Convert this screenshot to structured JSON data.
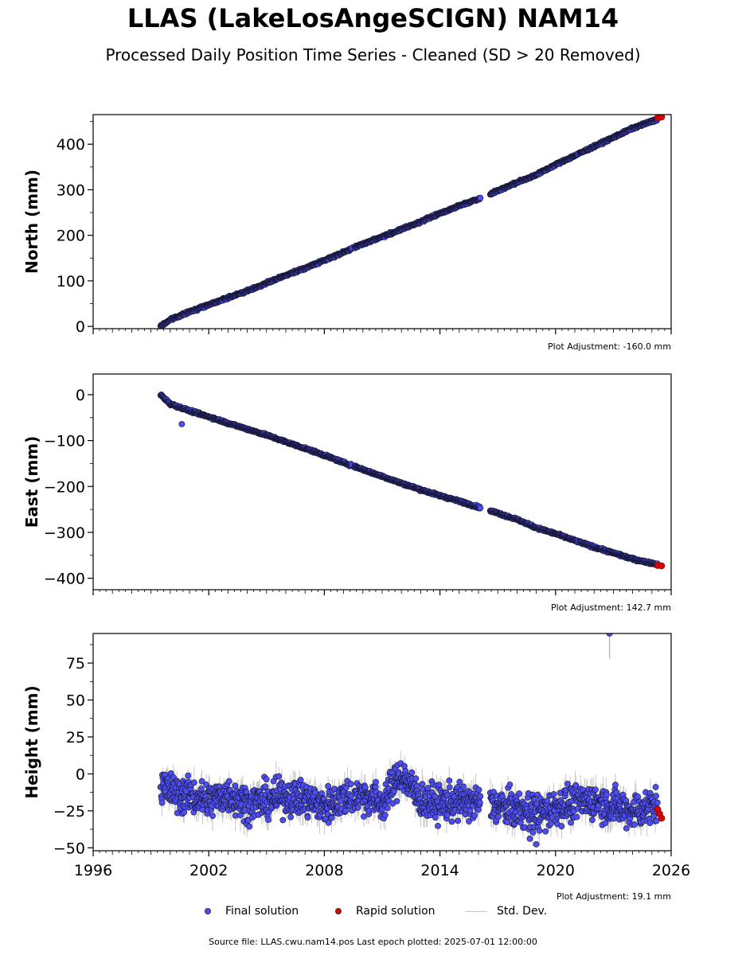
{
  "title": "LLAS (LakeLosAngeSCIGN) NAM14",
  "subtitle": "Processed Daily Position Time Series - Cleaned (SD > 20 Removed)",
  "legend": {
    "final_label": "Final solution",
    "rapid_label": "Rapid solution",
    "std_label": "Std. Dev."
  },
  "footer": {
    "source": "Source file: LLAS.cwu.nam14.pos  Last epoch plotted: 2025-07-01 12:00:00"
  },
  "colors": {
    "final": "#4d4df0",
    "rapid": "#e00000",
    "std": "#b0b0b0",
    "edge": "#15152e"
  },
  "chart_data": [
    {
      "type": "scatter",
      "panel": "north",
      "ylabel": "North (mm)",
      "adjustment": "Plot Adjustment: -160.0 mm",
      "xlim": [
        1996,
        2026
      ],
      "ylim": [
        -5,
        465
      ],
      "yticks": [
        0,
        100,
        200,
        300,
        400
      ],
      "yticklabels": [
        "0",
        "100",
        "200",
        "300",
        "400"
      ],
      "series": [
        {
          "name": "Final solution",
          "x": [
            1999.5,
            2000,
            2001,
            2002,
            2003,
            2004,
            2005,
            2006,
            2007,
            2008,
            2009,
            2010,
            2011,
            2012,
            2013,
            2014,
            2015,
            2016,
            2017,
            2018,
            2019,
            2020,
            2021,
            2022,
            2023,
            2024,
            2025.3
          ],
          "y": [
            0,
            15,
            32,
            48,
            63,
            78,
            95,
            112,
            128,
            145,
            163,
            181,
            197,
            213,
            230,
            248,
            265,
            280,
            298,
            316,
            333,
            355,
            375,
            395,
            415,
            435,
            455
          ]
        },
        {
          "name": "Rapid solution",
          "x": [
            2025.3,
            2025.5
          ],
          "y": [
            458,
            460
          ]
        }
      ]
    },
    {
      "type": "scatter",
      "panel": "east",
      "ylabel": "East (mm)",
      "adjustment": "Plot Adjustment: 142.7 mm",
      "xlim": [
        1996,
        2026
      ],
      "ylim": [
        -425,
        45
      ],
      "yticks": [
        0,
        -100,
        -200,
        -300,
        -400
      ],
      "yticklabels": [
        "0",
        "−100",
        "−200",
        "−300",
        "−400"
      ],
      "series": [
        {
          "name": "Final solution",
          "x": [
            1999.5,
            2000,
            2001,
            2002,
            2003,
            2004,
            2005,
            2006,
            2007,
            2008,
            2009,
            2010,
            2011,
            2012,
            2013,
            2014,
            2015,
            2016,
            2017,
            2018,
            2019,
            2020,
            2021,
            2022,
            2023,
            2024,
            2025.3
          ],
          "y": [
            0,
            -20,
            -35,
            -48,
            -62,
            -75,
            -88,
            -103,
            -117,
            -132,
            -148,
            -163,
            -178,
            -193,
            -207,
            -220,
            -232,
            -245,
            -258,
            -272,
            -290,
            -303,
            -318,
            -332,
            -345,
            -358,
            -370
          ]
        },
        {
          "name": "Rapid solution",
          "x": [
            2025.3,
            2025.5
          ],
          "y": [
            -372,
            -373
          ]
        }
      ]
    },
    {
      "type": "scatter",
      "panel": "height",
      "ylabel": "Height (mm)",
      "adjustment": "Plot Adjustment: 19.1 mm",
      "xlim": [
        1996,
        2026
      ],
      "ylim": [
        -52,
        95
      ],
      "yticks": [
        -50,
        -25,
        0,
        25,
        50,
        75
      ],
      "yticklabels": [
        "−50",
        "−25",
        "0",
        "25",
        "50",
        "75"
      ],
      "xticks": [
        1996,
        2002,
        2008,
        2014,
        2020,
        2026
      ],
      "xticklabels": [
        "1996",
        "2002",
        "2008",
        "2014",
        "2020",
        "2026"
      ],
      "series": [
        {
          "name": "Final solution",
          "x": [
            1999.5,
            2000,
            2001,
            2002,
            2003,
            2004,
            2005,
            2006,
            2007,
            2008,
            2009,
            2010,
            2011,
            2012,
            2013,
            2014,
            2015,
            2016.5,
            2017,
            2018,
            2019,
            2020,
            2021,
            2022,
            2023,
            2024,
            2025.3
          ],
          "y": [
            -8,
            -12,
            -15,
            -18,
            -14,
            -20,
            -18,
            -15,
            -17,
            -22,
            -16,
            -14,
            -20,
            0,
            -18,
            -20,
            -19,
            -20,
            -22,
            -24,
            -28,
            -22,
            -20,
            -18,
            -22,
            -25,
            -22
          ]
        },
        {
          "name": "Rapid solution",
          "x": [
            2025.3,
            2025.4,
            2025.5
          ],
          "y": [
            -24,
            -27,
            -30
          ]
        }
      ]
    }
  ]
}
